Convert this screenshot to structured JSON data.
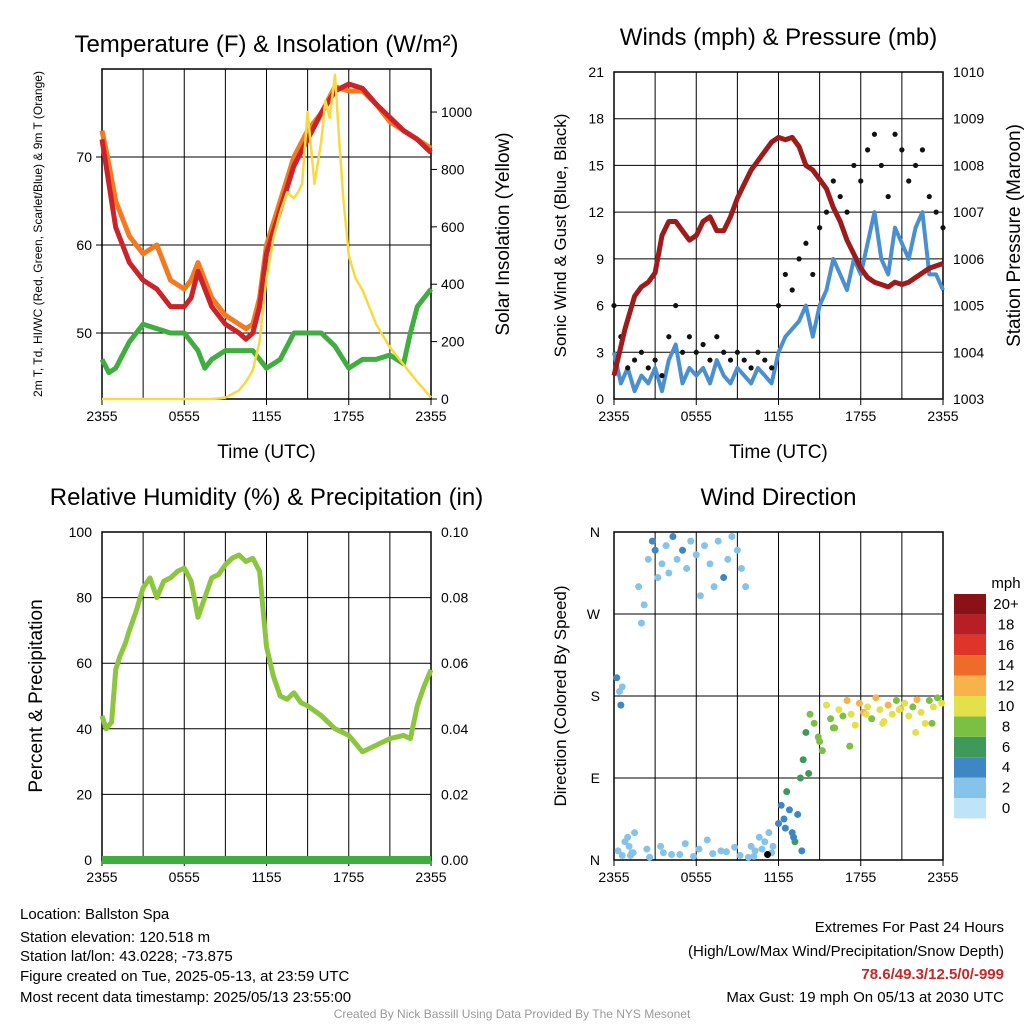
{
  "meta": {
    "location": "Location: Ballston Spa",
    "elevation": "Station elevation: 120.518 m",
    "latlon": "Station lat/lon: 43.0228; -73.875",
    "created": "Figure created on Tue, 2025-05-13, at 23:59 UTC",
    "recent": "Most recent data timestamp: 2025/05/13 23:55:00",
    "footer": "Created By Nick Bassill Using Data Provided By The NYS Mesonet",
    "extremes_title": "Extremes For Past 24 Hours",
    "extremes_sub": "(High/Low/Max Wind/Precipitation/Snow Depth)",
    "extremes_values": "78.6/49.3/12.5/0/-999",
    "max_gust": "Max Gust: 19 mph On 05/13 at 2030 UTC"
  },
  "chart_data": [
    {
      "type": "line",
      "title": "Temperature (F) & Insolation (W/m²)",
      "xlabel": "Time (UTC)",
      "ylabel": "2m T, Td, HI/WC (Red, Green, Scarlet/Blue) & 9m T (Orange)",
      "ylabel_right": "Solar Insolation (Yellow)",
      "x_ticks": [
        "2355",
        "0555",
        "1155",
        "1755",
        "2355"
      ],
      "ylim": [
        42.5,
        80
      ],
      "y_ticks": [
        50,
        60,
        70
      ],
      "ylim_right": [
        0,
        1150
      ],
      "y_ticks_right": [
        0,
        200,
        400,
        600,
        800,
        1000
      ],
      "x_hours": [
        0,
        24
      ],
      "series": [
        {
          "color": "#f47a20",
          "axis": "left",
          "x": [
            0,
            0.4,
            1,
            2,
            3,
            4,
            5,
            6,
            6.5,
            7,
            8,
            9,
            10,
            10.5,
            11,
            11.5,
            12,
            13,
            14,
            15,
            16,
            17,
            18,
            19,
            20,
            21,
            22,
            23,
            24
          ],
          "values": [
            73,
            70,
            65,
            61,
            59,
            60,
            56,
            55,
            56,
            58,
            54,
            52,
            51,
            50.5,
            51,
            54,
            60,
            65,
            70,
            73,
            75,
            78,
            77.5,
            77.5,
            76,
            74,
            73,
            72,
            71
          ]
        },
        {
          "color": "#cc2229",
          "axis": "left",
          "x": [
            0,
            0.4,
            1,
            2,
            3,
            4,
            5,
            6,
            6.5,
            7,
            8,
            9,
            10,
            10.5,
            11,
            11.5,
            12,
            13,
            14,
            15,
            16,
            17,
            18,
            19,
            20,
            21,
            22,
            23,
            24
          ],
          "values": [
            72,
            68,
            62,
            58,
            56,
            55,
            53,
            53,
            54,
            57,
            53,
            51,
            50,
            49.3,
            50,
            53,
            59,
            64,
            69,
            72,
            75,
            77.5,
            78.3,
            77.8,
            76,
            74.5,
            73,
            72,
            70.5
          ]
        },
        {
          "color": "#3fae3f",
          "axis": "left",
          "x": [
            0,
            0.5,
            1,
            2,
            3,
            4,
            5,
            6,
            7,
            7.5,
            8,
            9,
            10,
            11,
            12,
            13,
            14,
            15,
            16,
            17,
            18,
            19,
            20,
            21,
            22,
            22.5,
            23,
            24
          ],
          "values": [
            47,
            45.5,
            46,
            49,
            51,
            50.5,
            50,
            50,
            48,
            46,
            47,
            48,
            48,
            48,
            46,
            47,
            50,
            50,
            50,
            48.5,
            46,
            47,
            47,
            47.5,
            46.5,
            50,
            53,
            55
          ]
        },
        {
          "color": "#f7da3f",
          "axis": "right",
          "x": [
            0,
            2,
            4,
            6,
            8,
            9,
            10,
            10.5,
            11,
            11.5,
            12,
            12.5,
            13,
            13.5,
            14,
            14.3,
            14.6,
            15,
            15.5,
            16,
            16.3,
            16.6,
            17,
            17.3,
            17.6,
            18,
            18.5,
            19,
            20,
            21,
            22,
            23,
            24
          ],
          "values": [
            0,
            0,
            0,
            0,
            0,
            5,
            30,
            60,
            100,
            200,
            420,
            560,
            650,
            720,
            700,
            720,
            750,
            1000,
            750,
            900,
            1040,
            980,
            1130,
            900,
            700,
            500,
            420,
            380,
            260,
            180,
            120,
            60,
            5
          ]
        }
      ]
    },
    {
      "type": "line",
      "title": "Winds (mph) & Pressure (mb)",
      "xlabel": "Time (UTC)",
      "ylabel": "Sonic Wind & Gust (Blue, Black)",
      "ylabel_right": "Station Pressure (Maroon)",
      "x_ticks": [
        "2355",
        "0555",
        "1155",
        "1755",
        "2355"
      ],
      "ylim": [
        0,
        21
      ],
      "y_ticks": [
        0,
        3,
        6,
        9,
        12,
        15,
        18,
        21
      ],
      "ylim_right": [
        1003,
        1010
      ],
      "y_ticks_right": [
        1003,
        1004,
        1005,
        1006,
        1007,
        1008,
        1009,
        1010
      ],
      "series": [
        {
          "name": "wind",
          "color": "#4a90d0",
          "axis": "left",
          "x": [
            0,
            0.5,
            1,
            1.5,
            2,
            2.5,
            3,
            3.5,
            4,
            4.5,
            5,
            5.5,
            6,
            6.5,
            7,
            7.5,
            8,
            8.5,
            9,
            9.5,
            10,
            10.5,
            11,
            11.5,
            12,
            12.5,
            13,
            13.5,
            14,
            14.5,
            15,
            15.5,
            16,
            16.5,
            17,
            17.5,
            18,
            18.5,
            19,
            19.5,
            20,
            20.5,
            21,
            21.5,
            22,
            22.5,
            23,
            23.5,
            24
          ],
          "values": [
            3,
            1,
            2,
            0.5,
            1.5,
            1,
            2,
            0.5,
            2.5,
            3.5,
            1,
            2,
            1.5,
            2,
            1,
            2.5,
            1.5,
            1,
            2,
            1.5,
            1,
            2,
            1.5,
            1,
            3,
            4,
            4.5,
            5,
            6,
            4,
            6,
            7,
            9,
            8,
            7,
            9,
            8,
            10,
            12,
            9,
            8,
            11,
            10,
            9,
            11,
            12,
            8,
            8,
            7
          ]
        },
        {
          "name": "gust",
          "color": "#111111",
          "axis": "left",
          "x": [
            0,
            0.5,
            1,
            1.5,
            2,
            2.5,
            3,
            3.5,
            4,
            4.5,
            5,
            5.5,
            6,
            6.5,
            7,
            7.5,
            8,
            8.5,
            9,
            9.5,
            10,
            10.5,
            11,
            11.5,
            12,
            12.5,
            13,
            13.5,
            14,
            14.5,
            15,
            15.5,
            16,
            16.5,
            17,
            17.5,
            18,
            18.5,
            19,
            19.5,
            20,
            20.5,
            21,
            21.5,
            22,
            22.5,
            23,
            23.5,
            24
          ],
          "values": [
            6,
            4,
            2,
            2.5,
            3,
            2,
            2.5,
            1.5,
            4,
            6,
            3,
            4,
            3,
            3.5,
            2.5,
            4,
            3,
            2.5,
            3,
            2.5,
            2,
            3,
            2.5,
            2,
            6,
            8,
            7,
            9,
            10,
            8,
            11,
            12,
            14,
            13,
            12,
            15,
            14,
            16,
            17,
            15,
            13,
            17,
            16,
            14,
            15,
            16,
            13,
            12,
            11
          ]
        },
        {
          "name": "pressure",
          "color": "#9e1b1b",
          "axis": "right",
          "x": [
            0,
            0.8,
            1.5,
            2,
            2.5,
            3,
            3.5,
            4,
            4.5,
            5,
            5.5,
            6,
            6.5,
            7,
            7.5,
            8,
            8.5,
            9,
            9.5,
            10,
            10.5,
            11,
            11.5,
            12,
            12.5,
            13,
            13.5,
            14,
            14.5,
            15,
            15.5,
            16,
            16.5,
            17,
            17.5,
            18,
            18.5,
            19,
            19.5,
            20,
            20.5,
            21,
            21.5,
            22,
            22.5,
            23,
            23.5,
            24
          ],
          "values": [
            1003.5,
            1004.5,
            1005.2,
            1005.4,
            1005.5,
            1005.7,
            1006.5,
            1006.8,
            1006.8,
            1006.6,
            1006.4,
            1006.5,
            1006.8,
            1006.9,
            1006.6,
            1006.6,
            1006.9,
            1007.3,
            1007.6,
            1007.9,
            1008.1,
            1008.3,
            1008.5,
            1008.6,
            1008.55,
            1008.6,
            1008.4,
            1008.0,
            1007.9,
            1007.7,
            1007.5,
            1007.1,
            1006.8,
            1006.4,
            1006.1,
            1005.8,
            1005.6,
            1005.5,
            1005.45,
            1005.4,
            1005.5,
            1005.45,
            1005.5,
            1005.6,
            1005.7,
            1005.8,
            1005.85,
            1005.9
          ]
        }
      ]
    },
    {
      "type": "line",
      "title": "Relative Humidity (%) & Precipitation (in)",
      "ylabel": "Percent & Precipitation",
      "x_ticks": [
        "2355",
        "0555",
        "1155",
        "1755",
        "2355"
      ],
      "ylim": [
        0,
        100
      ],
      "y_ticks": [
        0,
        20,
        40,
        60,
        80,
        100
      ],
      "ylim_right": [
        0,
        0.1
      ],
      "y_ticks_right": [
        "0.00",
        "0.02",
        "0.04",
        "0.06",
        "0.08",
        "0.10"
      ],
      "series": [
        {
          "name": "rh",
          "color": "#8cc63f",
          "axis": "left",
          "x": [
            0,
            0.3,
            0.7,
            1,
            1.3,
            1.7,
            2,
            2.5,
            3,
            3.5,
            4,
            4.5,
            5,
            5.5,
            6,
            6.5,
            7,
            7.5,
            8,
            8.5,
            9,
            9.5,
            10,
            10.5,
            11,
            11.5,
            12,
            12.5,
            13,
            13.5,
            14,
            14.5,
            15,
            16,
            17,
            18,
            19,
            20,
            21,
            22,
            22.5,
            23,
            23.5,
            24
          ],
          "values": [
            44,
            40,
            42,
            58,
            62,
            66,
            70,
            76,
            83,
            86,
            80,
            85,
            86,
            88,
            89,
            85,
            74,
            80,
            86,
            87,
            90,
            92,
            93,
            91,
            92,
            88,
            65,
            56,
            50,
            49,
            51,
            48,
            47,
            44,
            40,
            38,
            33,
            35,
            37,
            38,
            37,
            47,
            53,
            58
          ]
        },
        {
          "name": "precip",
          "color": "#3fae3f",
          "axis": "right",
          "x": [
            0,
            24
          ],
          "values": [
            0,
            0
          ]
        }
      ]
    },
    {
      "type": "scatter",
      "title": "Wind Direction",
      "ylabel": "Direction (Colored By Speed)",
      "x_ticks": [
        "2355",
        "0555",
        "1155",
        "1755",
        "2355"
      ],
      "y_ticks": [
        "N",
        "E",
        "S",
        "W",
        "N"
      ],
      "ylim": [
        0,
        360
      ],
      "legend_title": "mph",
      "legend_labels": [
        "0",
        "2",
        "4",
        "6",
        "8",
        "10",
        "12",
        "14",
        "16",
        "18",
        "20+"
      ],
      "legend_colors": [
        "#bfe3f7",
        "#86c3e8",
        "#3f86c4",
        "#3f9a5a",
        "#7cc043",
        "#e3e04a",
        "#f8b24c",
        "#ef6b2a",
        "#de3528",
        "#b71f25",
        "#8a1116"
      ],
      "x": [
        0.2,
        0.4,
        0.5,
        0.6,
        0.8,
        1.0,
        1.1,
        1.3,
        1.5,
        1.8,
        2.0,
        2.2,
        2.5,
        2.8,
        3.0,
        3.2,
        3.5,
        3.8,
        4.0,
        4.3,
        4.6,
        5.0,
        5.3,
        5.6,
        6.0,
        6.3,
        6.6,
        7.0,
        7.3,
        7.6,
        8.0,
        8.3,
        8.6,
        9.0,
        9.3,
        9.6,
        10.0,
        10.3,
        10.6,
        11.0,
        11.3,
        11.6,
        12.0,
        12.2,
        12.4,
        12.6,
        12.8,
        13.0,
        13.2,
        13.4,
        13.6,
        13.8,
        14.0,
        14.3,
        14.6,
        14.9,
        15.2,
        15.5,
        15.8,
        16.1,
        16.4,
        16.7,
        17.0,
        17.3,
        17.6,
        17.9,
        18.2,
        18.5,
        18.8,
        19.1,
        19.4,
        19.7,
        20.0,
        20.3,
        20.6,
        20.9,
        21.2,
        21.5,
        21.8,
        22.1,
        22.4,
        22.7,
        23.0,
        23.3,
        23.6,
        23.9,
        1.2,
        2.4,
        3.6,
        4.8,
        5.2,
        6.8,
        7.8,
        8.8,
        9.8,
        10.8,
        11.5,
        12.5,
        13.1,
        13.7,
        14.2,
        15.0,
        16.0,
        17.2,
        18.4,
        19.6,
        20.8,
        22.0,
        23.2,
        0.3,
        0.6,
        1.4,
        2.6,
        3.4,
        4.2,
        5.8,
        6.2,
        7.2,
        8.2,
        9.2,
        10.2,
        11.2
      ],
      "values": [
        200,
        185,
        170,
        190,
        20,
        25,
        15,
        8,
        30,
        300,
        260,
        280,
        330,
        350,
        340,
        310,
        325,
        345,
        315,
        355,
        330,
        340,
        320,
        350,
        335,
        290,
        345,
        325,
        300,
        350,
        310,
        330,
        355,
        340,
        320,
        300,
        15,
        10,
        25,
        20,
        30,
        15,
        40,
        60,
        45,
        75,
        55,
        30,
        20,
        50,
        90,
        110,
        140,
        160,
        150,
        135,
        120,
        170,
        155,
        145,
        165,
        158,
        175,
        160,
        148,
        172,
        162,
        168,
        155,
        178,
        165,
        152,
        170,
        160,
        175,
        166,
        172,
        158,
        168,
        176,
        162,
        150,
        175,
        168,
        178,
        172,
        5,
        12,
        8,
        6,
        18,
        22,
        10,
        14,
        3,
        12,
        8,
        35,
        25,
        10,
        95,
        130,
        145,
        125,
        160,
        150,
        165,
        140,
        150,
        10,
        5,
        8,
        3,
        15,
        6,
        4,
        12,
        7,
        9,
        5,
        4,
        6
      ],
      "speeds": [
        3,
        2,
        3,
        2,
        2,
        1,
        2,
        1,
        2,
        1,
        1,
        1,
        1,
        3,
        3,
        1,
        1,
        1,
        1,
        3,
        2,
        3,
        1,
        1,
        1,
        2,
        1,
        2,
        1,
        1,
        3,
        1,
        1,
        1,
        1,
        1,
        1,
        1,
        1,
        1,
        1,
        2,
        4,
        4,
        3,
        5,
        4,
        4,
        5,
        4,
        5,
        6,
        6,
        7,
        8,
        7,
        7,
        9,
        7,
        8,
        9,
        8,
        12,
        10,
        9,
        12,
        11,
        9,
        8,
        12,
        10,
        10,
        11,
        9,
        8,
        12,
        10,
        9,
        8,
        11,
        10,
        9,
        8,
        9,
        8,
        9,
        1,
        1,
        1,
        1,
        1,
        1,
        1,
        1,
        1,
        1,
        1,
        3,
        4,
        4,
        5,
        8,
        7,
        8,
        9,
        10,
        10,
        9,
        8,
        1,
        2,
        1,
        1,
        1,
        1,
        1,
        1,
        1,
        1,
        1,
        1
      ]
    }
  ]
}
